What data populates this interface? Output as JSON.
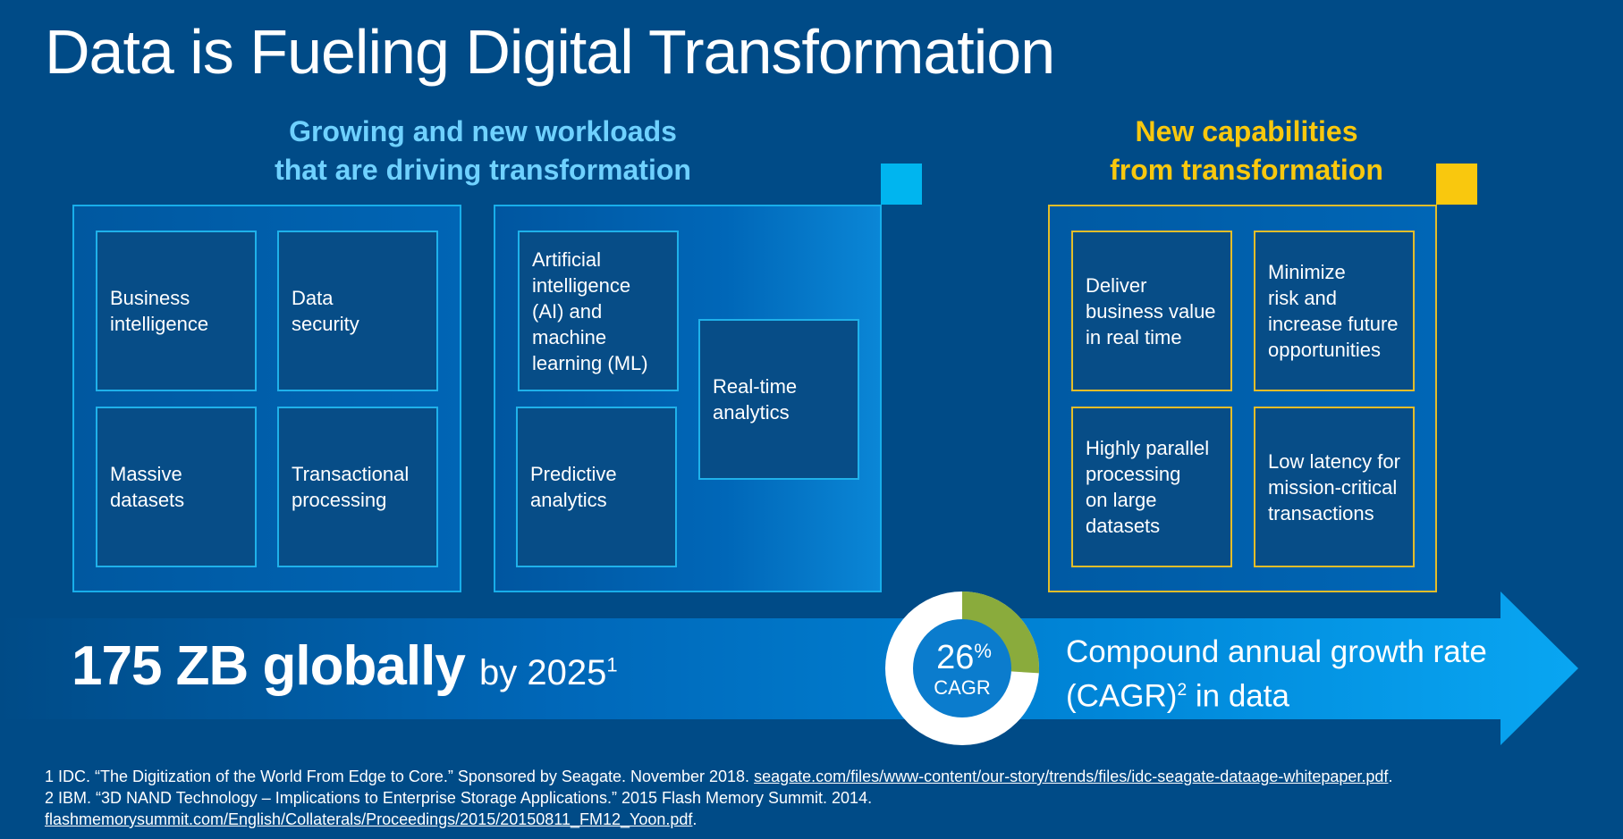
{
  "title": "Data is Fueling Digital Transformation",
  "colors": {
    "background": "#004b87",
    "workloads_accent": "#00b5ef",
    "capabilities_accent": "#f9c80e",
    "donut_green": "#8aab3c",
    "arrow": "#0095e8"
  },
  "workloads": {
    "heading_line1": "Growing and new workloads",
    "heading_line2": "that are driving transformation",
    "group1": [
      {
        "label": "Business\nintelligence"
      },
      {
        "label": "Data\nsecurity"
      },
      {
        "label": "Massive\ndatasets"
      },
      {
        "label": "Transactional\nprocessing"
      }
    ],
    "group2": [
      {
        "label": "Artificial\nintelligence\n(AI) and\nmachine\nlearning (ML)"
      },
      {
        "label": "Real-time\nanalytics"
      },
      {
        "label": "Predictive\nanalytics"
      }
    ]
  },
  "capabilities": {
    "heading_line1": "New capabilities",
    "heading_line2": "from transformation",
    "items": [
      {
        "label": "Deliver\nbusiness value\nin real time"
      },
      {
        "label": "Minimize\nrisk and\nincrease future\nopportunities"
      },
      {
        "label": "Highly parallel\nprocessing\non large\ndatasets"
      },
      {
        "label": "Low latency for\nmission-critical\ntransactions"
      }
    ]
  },
  "stat": {
    "main": "175 ZB globally",
    "sub": "by 2025",
    "sub_sup": "1"
  },
  "cagr": {
    "value": "26",
    "percent_sign": "%",
    "label": "CAGR",
    "fraction": 0.26,
    "text_line1": "Compound annual growth rate",
    "text_line2_a": "(CAGR)",
    "text_line2_sup": "2",
    "text_line2_b": " in data"
  },
  "footnotes": {
    "fn1_text": "1 IDC. “The Digitization of the World From Edge to Core.” Sponsored by Seagate. November 2018. ",
    "fn1_link": "seagate.com/files/www-content/our-story/trends/files/idc-seagate-dataage-whitepaper.pdf",
    "fn1_end": ".",
    "fn2_text": "2 IBM. “3D NAND Technology – Implications to Enterprise Storage Applications.” 2015 Flash Memory Summit. 2014.",
    "fn3_link": "flashmemorysummit.com/English/Collaterals/Proceedings/2015/20150811_FM12_Yoon.pdf",
    "fn3_end": "."
  }
}
